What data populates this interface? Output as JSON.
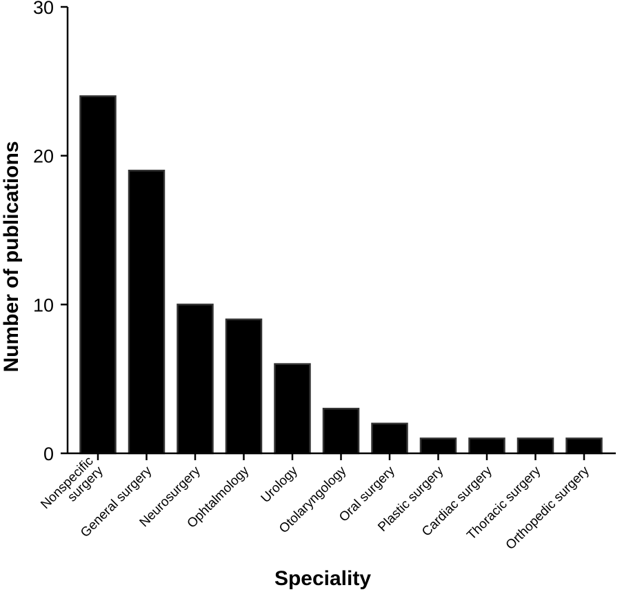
{
  "chart_data": {
    "type": "bar",
    "title": "",
    "xlabel": "Speciality",
    "ylabel": "Number of publications",
    "ylim": [
      0,
      30
    ],
    "yticks": [
      "0",
      "10",
      "20",
      "30"
    ],
    "grid": false,
    "categories": [
      [
        "Nonspecific",
        "surgery"
      ],
      [
        "General surgery"
      ],
      [
        "Neurosurgery"
      ],
      [
        "Ophtalmology"
      ],
      [
        "Urology"
      ],
      [
        "Otolaryngology"
      ],
      [
        "Oral surgery"
      ],
      [
        "Plastic surgery"
      ],
      [
        "Cardiac surgery"
      ],
      [
        "Thoracic surgery"
      ],
      [
        "Orthopedic surgery"
      ]
    ],
    "values": [
      24,
      19,
      10,
      9,
      6,
      3,
      2,
      1,
      1,
      1,
      1
    ],
    "bar_color": "#000000",
    "bar_edge_color": "#333333"
  }
}
